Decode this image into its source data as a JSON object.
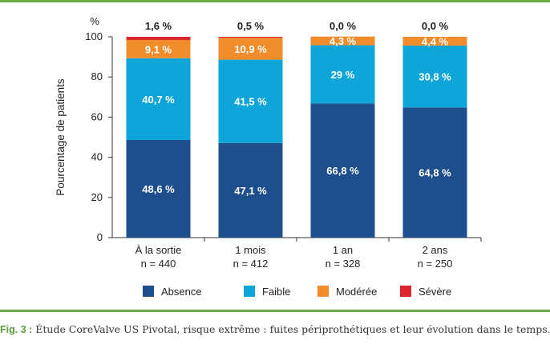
{
  "colors": {
    "absence": "#1f4e8c",
    "faible": "#0ea5d8",
    "moderee": "#f08c2c",
    "severe": "#d9262f",
    "frame": "#6aaa47",
    "text": "#222222"
  },
  "chart_data": {
    "type": "bar",
    "stacked": true,
    "ylabel": "Pourcentage de patients",
    "yunit": "%",
    "ylim": [
      0,
      100
    ],
    "yticks": [
      "0",
      "20",
      "40",
      "60",
      "80",
      "100"
    ],
    "categories": [
      {
        "label": "À la sortie",
        "n": "n = 440"
      },
      {
        "label": "1 mois",
        "n": "n = 412"
      },
      {
        "label": "1 an",
        "n": "n = 328"
      },
      {
        "label": "2 ans",
        "n": "n = 250"
      }
    ],
    "top_labels": [
      "1,6 %",
      "0,5 %",
      "0,0 %",
      "0,0 %"
    ],
    "series": [
      {
        "name": "Absence",
        "color": "#1f4e8c",
        "values": [
          48.6,
          47.1,
          66.8,
          64.8
        ],
        "labels": [
          "48,6 %",
          "47,1 %",
          "66,8 %",
          "64,8 %"
        ]
      },
      {
        "name": "Faible",
        "color": "#0ea5d8",
        "values": [
          40.7,
          41.5,
          29.0,
          30.8
        ],
        "labels": [
          "40,7 %",
          "41,5 %",
          "29 %",
          "30,8 %"
        ]
      },
      {
        "name": "Modérée",
        "color": "#f08c2c",
        "values": [
          9.1,
          10.9,
          4.3,
          4.4
        ],
        "labels": [
          "9,1 %",
          "10,9 %",
          "4,3 %",
          "4,4 %"
        ]
      },
      {
        "name": "Sévère",
        "color": "#d9262f",
        "values": [
          1.6,
          0.5,
          0.0,
          0.0
        ],
        "labels": [
          "",
          "",
          "",
          ""
        ]
      }
    ],
    "grid": false,
    "legend": "bottom"
  },
  "caption": {
    "fig": "Fig. 3 :",
    "text": " Étude CoreValve US Pivotal, risque extrême : fuites périprothétiques et leur évolution dans le temps."
  }
}
